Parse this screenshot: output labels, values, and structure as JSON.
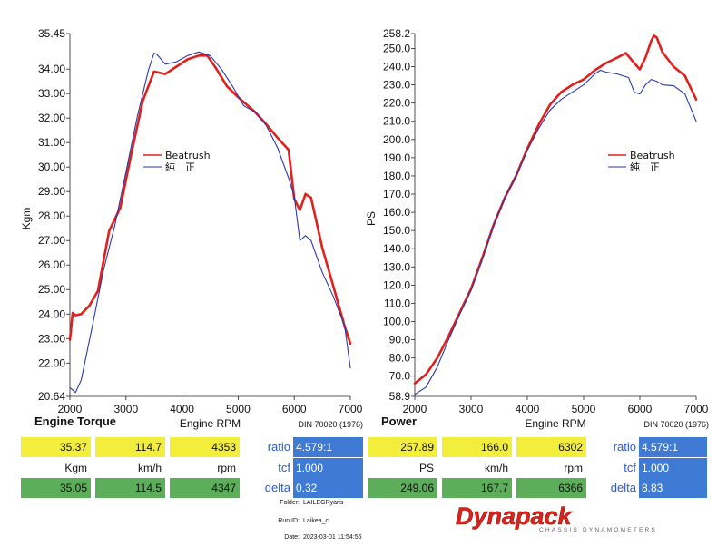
{
  "chart_data": [
    {
      "type": "line",
      "title": "Engine Torque",
      "xlabel": "Engine RPM",
      "ylabel": "Kgm",
      "note": "DIN 70020 (1976)",
      "xlim": [
        2000,
        7000
      ],
      "ylim": [
        20.64,
        35.45
      ],
      "xticks": [
        "2000",
        "3000",
        "4000",
        "5000",
        "6000",
        "7000"
      ],
      "yticks": [
        "35.45",
        "34.00",
        "33.00",
        "32.00",
        "31.00",
        "30.00",
        "29.00",
        "28.00",
        "27.00",
        "26.00",
        "25.00",
        "24.00",
        "23.00",
        "22.00",
        "20.64"
      ],
      "legend_placement": "middle",
      "series": [
        {
          "name": "Beatrush",
          "color": "#e0201c",
          "x": [
            2000,
            2050,
            2100,
            2200,
            2350,
            2500,
            2700,
            2900,
            3100,
            3300,
            3500,
            3700,
            3900,
            4100,
            4300,
            4450,
            4600,
            4800,
            5000,
            5300,
            5500,
            5700,
            5900,
            6000,
            6100,
            6200,
            6300,
            6500,
            6700,
            6900,
            7000
          ],
          "y": [
            22.95,
            24.05,
            23.95,
            24.0,
            24.35,
            24.95,
            27.4,
            28.35,
            30.6,
            32.7,
            33.9,
            33.8,
            34.1,
            34.4,
            34.55,
            34.55,
            34.05,
            33.3,
            32.85,
            32.25,
            31.75,
            31.2,
            30.7,
            28.7,
            28.25,
            28.9,
            28.75,
            26.7,
            25.1,
            23.5,
            22.8
          ]
        },
        {
          "name": "純　正",
          "color": "#2a36a8",
          "x": [
            2000,
            2100,
            2200,
            2400,
            2600,
            2800,
            3000,
            3200,
            3400,
            3500,
            3550,
            3700,
            3900,
            4100,
            4300,
            4500,
            4700,
            4900,
            5100,
            5300,
            5500,
            5700,
            5900,
            6000,
            6100,
            6200,
            6300,
            6500,
            6700,
            6900,
            7000
          ],
          "y": [
            21.0,
            20.8,
            21.3,
            23.5,
            25.8,
            27.6,
            29.8,
            32.05,
            33.95,
            34.65,
            34.6,
            34.2,
            34.3,
            34.55,
            34.7,
            34.55,
            34.0,
            33.3,
            32.5,
            32.25,
            31.7,
            30.8,
            29.55,
            28.8,
            27.0,
            27.2,
            27.0,
            25.7,
            24.7,
            23.5,
            21.8
          ]
        }
      ]
    },
    {
      "type": "line",
      "title": "Power",
      "xlabel": "Engine RPM",
      "ylabel": "PS",
      "note": "DIN 70020 (1976)",
      "xlim": [
        2000,
        7000
      ],
      "ylim": [
        58.9,
        258.2
      ],
      "xticks": [
        "2000",
        "3000",
        "4000",
        "5000",
        "6000",
        "7000"
      ],
      "yticks": [
        "258.2",
        "250.0",
        "240.0",
        "230.0",
        "220.0",
        "210.0",
        "200.0",
        "190.0",
        "180.0",
        "170.0",
        "160.0",
        "150.0",
        "140.0",
        "130.0",
        "120.0",
        "110.0",
        "100.0",
        "90.0",
        "80.0",
        "70.0",
        "58.9"
      ],
      "legend_placement": "top-right",
      "series": [
        {
          "name": "Beatrush",
          "color": "#e0201c",
          "x": [
            2000,
            2200,
            2400,
            2600,
            2800,
            3000,
            3200,
            3400,
            3600,
            3800,
            4000,
            4200,
            4400,
            4600,
            4800,
            5000,
            5200,
            5400,
            5600,
            5750,
            5900,
            6000,
            6100,
            6200,
            6250,
            6300,
            6400,
            6600,
            6800,
            7000
          ],
          "y": [
            66.0,
            71.0,
            80.0,
            92.0,
            105.0,
            118.0,
            135.0,
            153.0,
            168.0,
            180.0,
            195.0,
            208.0,
            219.0,
            226.0,
            230.0,
            233.0,
            238.0,
            242.0,
            245.0,
            247.5,
            242.0,
            238.5,
            245.0,
            254.0,
            257.0,
            256.0,
            248.0,
            240.0,
            235.0,
            222.0
          ]
        },
        {
          "name": "純　正",
          "color": "#2a36a8",
          "x": [
            2000,
            2200,
            2400,
            2600,
            2800,
            3000,
            3200,
            3400,
            3600,
            3800,
            4000,
            4200,
            4400,
            4600,
            4800,
            5000,
            5200,
            5300,
            5400,
            5600,
            5800,
            5900,
            6000,
            6100,
            6200,
            6300,
            6400,
            6600,
            6800,
            7000
          ],
          "y": [
            60.0,
            64.0,
            75.0,
            90.0,
            104.0,
            117.0,
            134.0,
            153.0,
            168.0,
            180.0,
            194.0,
            206.0,
            216.0,
            222.0,
            226.0,
            230.0,
            236.0,
            238.0,
            237.0,
            236.0,
            234.0,
            226.0,
            225.0,
            230.0,
            233.0,
            232.0,
            230.0,
            229.5,
            225.0,
            210.0
          ]
        }
      ]
    }
  ],
  "left_panel": {
    "row1": [
      "35.37",
      "114.7",
      "4353"
    ],
    "units": [
      "Kgm",
      "km/h",
      "rpm"
    ],
    "row2": [
      "35.05",
      "114.5",
      "4347"
    ],
    "params": [
      {
        "name": "ratio",
        "value": "4.579:1"
      },
      {
        "name": "tcf",
        "value": "1.000"
      },
      {
        "name": "delta",
        "value": "0.32"
      }
    ]
  },
  "right_panel": {
    "row1": [
      "257.89",
      "166.0",
      "6302"
    ],
    "units": [
      "PS",
      "km/h",
      "rpm"
    ],
    "row2": [
      "249.06",
      "167.7",
      "6366"
    ],
    "params": [
      {
        "name": "ratio",
        "value": "4.579:1"
      },
      {
        "name": "tcf",
        "value": "1.000"
      },
      {
        "name": "delta",
        "value": "8.83"
      }
    ]
  },
  "meta": {
    "folder_label": "Folder:",
    "folder": "LAILEGRyaris",
    "run_label": "Run ID:",
    "run": "Laikea_c",
    "date_label": "Date:",
    "date": "2023-03-01 11:54:56"
  },
  "logo": {
    "text": "Dynapack",
    "tagline": "CHASSIS DYNAMOMETERS",
    "color": "#d9231b"
  }
}
